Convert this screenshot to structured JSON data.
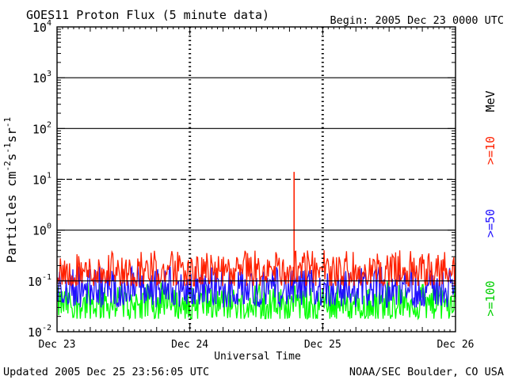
{
  "header": {
    "title": "GOES11 Proton Flux (5 minute data)",
    "begin": "Begin: 2005 Dec 23 0000 UTC"
  },
  "footer": {
    "updated": "Updated 2005 Dec 25 23:56:05 UTC",
    "credit": "NOAA/SEC Boulder, CO USA"
  },
  "colors": {
    "ge10": "#ff2000",
    "ge50": "#2010ff",
    "ge100": "#00ff00",
    "axis": "#000000",
    "background": "#ffffff"
  },
  "chart_data": {
    "type": "line",
    "title": "GOES11 Proton Flux (5 minute data)",
    "xlabel": "Universal Time",
    "ylabel": "Particles cm⁻²s⁻¹sr⁻¹",
    "ylabel_parts": {
      "main": "Particles cm",
      "sup1": "-2",
      "s": "s",
      "sup2": "-1",
      "sr": "sr",
      "sup3": "-1"
    },
    "y_scale": "log",
    "ylim": [
      0.01,
      10000
    ],
    "xlim": [
      "2005-12-23 00:00",
      "2005-12-26 00:00"
    ],
    "x_ticks": [
      "Dec 23",
      "Dec 24",
      "Dec 25",
      "Dec 26"
    ],
    "y_ticks": [
      {
        "base": "10",
        "exp": "-2"
      },
      {
        "base": "10",
        "exp": "-1"
      },
      {
        "base": "10",
        "exp": "0"
      },
      {
        "base": "10",
        "exp": "1"
      },
      {
        "base": "10",
        "exp": "2"
      },
      {
        "base": "10",
        "exp": "3"
      },
      {
        "base": "10",
        "exp": "4"
      }
    ],
    "gridlines": {
      "solid_at": [
        0.1,
        1,
        100,
        1000
      ],
      "dashed_at": [
        10
      ]
    },
    "energy_unit": "MeV",
    "series": [
      {
        "name": ">=10",
        "color": "#ff2000",
        "baseline": 0.15,
        "range": [
          0.08,
          0.4
        ],
        "spikes": [
          {
            "time": "2005-12-24 18:50",
            "value": 14
          }
        ]
      },
      {
        "name": ">=50",
        "color": "#2010ff",
        "baseline": 0.07,
        "range": [
          0.03,
          0.2
        ]
      },
      {
        "name": ">=100",
        "color": "#00ff00",
        "baseline": 0.035,
        "range": [
          0.018,
          0.1
        ]
      }
    ]
  }
}
